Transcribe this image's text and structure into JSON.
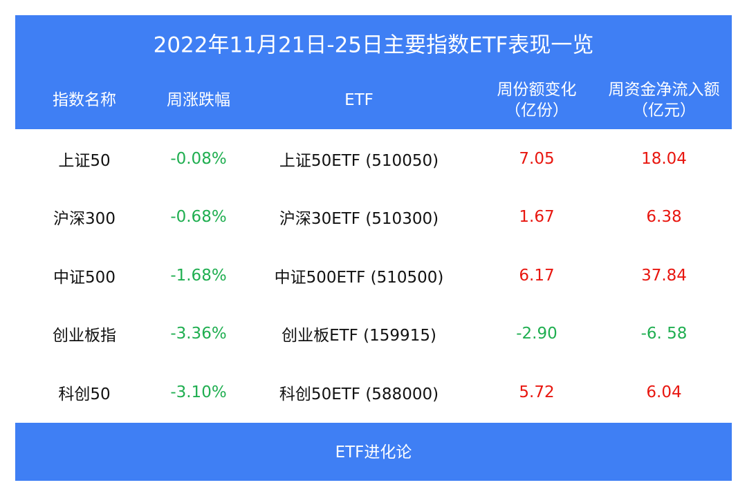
{
  "header": {
    "title": "2022年11月21日-25日主要指数ETF表现一览"
  },
  "table": {
    "columns": [
      "指数名称",
      "周涨跌幅",
      "ETF",
      [
        "周份额变化",
        "（亿份）"
      ],
      [
        "周资金净流入额",
        "（亿元）"
      ]
    ],
    "rows": [
      [
        "上证50",
        "-0.08%",
        "上证50ETF (510050)",
        "7.05",
        "18.04"
      ],
      [
        "沪深300",
        "-0.68%",
        "沪深30ETF (510300)",
        "1.67",
        "6.38"
      ],
      [
        "中证500",
        "-1.68%",
        "中证500ETF (510500)",
        "6.17",
        "37.84"
      ],
      [
        "创业板指",
        "-3.36%",
        "创业板ETF (159915)",
        "-2.90",
        "-6. 58"
      ],
      [
        "科创50",
        "-3.10%",
        "科创50ETF (588000)",
        "5.72",
        "6.04"
      ]
    ]
  },
  "footer": {
    "text": "ETF进化论"
  }
}
